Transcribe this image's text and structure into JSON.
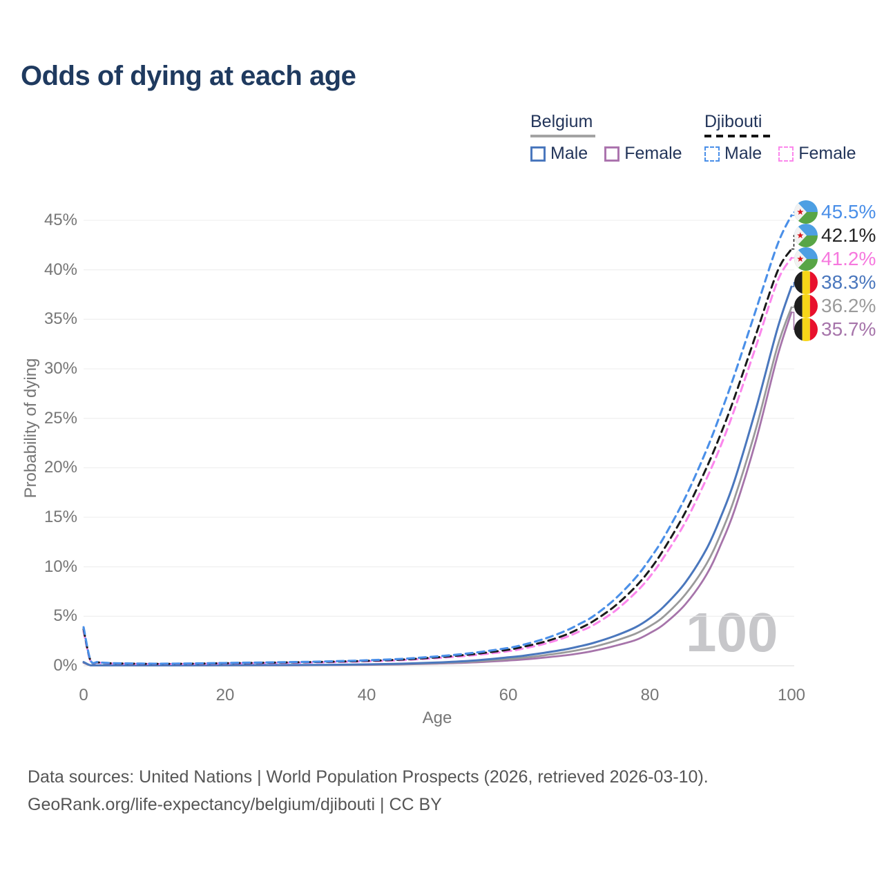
{
  "title": "Odds of dying at each age",
  "legend": {
    "groups": [
      {
        "name": "Belgium",
        "line_style": "solid",
        "items": [
          {
            "label": "Male",
            "color": "#4a77bd"
          },
          {
            "label": "Female",
            "color": "#ab74ae"
          }
        ]
      },
      {
        "name": "Djibouti",
        "line_style": "dashed",
        "items": [
          {
            "label": "Male",
            "color": "#4a8fe8"
          },
          {
            "label": "Female",
            "color": "#fb87ec"
          }
        ]
      }
    ]
  },
  "chart_data": {
    "type": "line",
    "xlabel": "Age",
    "ylabel": "Probability of dying",
    "xlim": [
      0,
      100
    ],
    "ylim_percent": [
      0,
      45
    ],
    "x_ticks": [
      0,
      20,
      40,
      60,
      80,
      100
    ],
    "y_ticks_percent": [
      0,
      5,
      10,
      15,
      20,
      25,
      30,
      35,
      40,
      45
    ],
    "grid": "horizontal",
    "hover_age_label": "100",
    "ages": [
      0,
      1,
      2,
      3,
      5,
      10,
      15,
      20,
      25,
      30,
      35,
      40,
      45,
      50,
      55,
      60,
      62,
      65,
      68,
      70,
      72,
      75,
      78,
      80,
      82,
      85,
      88,
      90,
      92,
      95,
      98,
      100
    ],
    "series": [
      {
        "name": "Belgium Female",
        "country": "Belgium",
        "sex": "female",
        "dash": false,
        "color": "#a674aa",
        "width": 2.8,
        "values_percent": [
          0.3,
          0.033,
          0.022,
          0.016,
          0.012,
          0.012,
          0.02,
          0.03,
          0.035,
          0.045,
          0.06,
          0.09,
          0.14,
          0.22,
          0.34,
          0.53,
          0.63,
          0.82,
          1.05,
          1.25,
          1.5,
          2.0,
          2.6,
          3.3,
          4.2,
          6.2,
          9.2,
          12.2,
          15.8,
          22.8,
          31.2,
          35.7
        ]
      },
      {
        "name": "Belgium (both sexes)",
        "country": "Belgium",
        "sex": "both",
        "dash": false,
        "color": "#9a9a9a",
        "width": 2.8,
        "values_percent": [
          0.34,
          0.037,
          0.025,
          0.018,
          0.014,
          0.013,
          0.025,
          0.045,
          0.05,
          0.06,
          0.08,
          0.11,
          0.17,
          0.27,
          0.42,
          0.68,
          0.8,
          1.05,
          1.35,
          1.6,
          1.9,
          2.5,
          3.25,
          4.0,
          5.0,
          7.2,
          10.3,
          13.3,
          17.0,
          24.0,
          32.2,
          36.2
        ]
      },
      {
        "name": "Belgium Male",
        "country": "Belgium",
        "sex": "male",
        "dash": false,
        "color": "#4a77bd",
        "width": 3,
        "values_percent": [
          0.38,
          0.04,
          0.03,
          0.02,
          0.015,
          0.015,
          0.03,
          0.06,
          0.07,
          0.08,
          0.1,
          0.14,
          0.21,
          0.33,
          0.52,
          0.85,
          1.0,
          1.3,
          1.65,
          1.95,
          2.3,
          3.0,
          3.9,
          4.8,
          6.0,
          8.4,
          11.8,
          15.0,
          18.8,
          26.0,
          34.0,
          38.3
        ]
      },
      {
        "name": "Djibouti Female",
        "country": "Djibouti",
        "sex": "female",
        "dash": true,
        "color": "#fb87ec",
        "width": 3.1,
        "values_percent": [
          3.5,
          0.44,
          0.33,
          0.26,
          0.21,
          0.18,
          0.19,
          0.23,
          0.27,
          0.31,
          0.37,
          0.45,
          0.57,
          0.78,
          1.06,
          1.47,
          1.72,
          2.2,
          2.85,
          3.45,
          4.1,
          5.5,
          7.4,
          9.0,
          11.0,
          14.5,
          18.9,
          22.2,
          26.0,
          32.3,
          38.8,
          41.2
        ]
      },
      {
        "name": "Djibouti (both sexes)",
        "country": "Djibouti",
        "sex": "both",
        "dash": true,
        "color": "#1a1a1a",
        "width": 3,
        "values_percent": [
          3.7,
          0.47,
          0.35,
          0.28,
          0.23,
          0.19,
          0.21,
          0.26,
          0.3,
          0.35,
          0.41,
          0.5,
          0.63,
          0.86,
          1.17,
          1.62,
          1.9,
          2.4,
          3.1,
          3.75,
          4.5,
          6.0,
          8.0,
          9.7,
          11.8,
          15.5,
          20.0,
          23.4,
          27.2,
          33.5,
          39.8,
          42.1
        ]
      },
      {
        "name": "Djibouti Male",
        "country": "Djibouti",
        "sex": "male",
        "dash": true,
        "color": "#4a8fe8",
        "width": 3.1,
        "values_percent": [
          3.9,
          0.5,
          0.38,
          0.3,
          0.25,
          0.21,
          0.23,
          0.28,
          0.33,
          0.38,
          0.45,
          0.55,
          0.7,
          0.95,
          1.3,
          1.8,
          2.1,
          2.7,
          3.5,
          4.2,
          5.0,
          6.7,
          8.9,
          10.8,
          13.0,
          17.0,
          21.8,
          25.5,
          29.5,
          36.0,
          42.5,
          45.5
        ]
      }
    ],
    "end_labels": [
      {
        "text": "45.5%",
        "value_percent": 45.5,
        "color": "#4a8fe8",
        "flag": "djibouti",
        "dashed": true,
        "series": "Djibouti Male"
      },
      {
        "text": "42.1%",
        "value_percent": 42.1,
        "color": "#262626",
        "flag": "djibouti",
        "dashed": true,
        "series": "Djibouti (both sexes)"
      },
      {
        "text": "41.2%",
        "value_percent": 41.2,
        "color": "#f678de",
        "flag": "djibouti",
        "dashed": true,
        "series": "Djibouti Female"
      },
      {
        "text": "38.3%",
        "value_percent": 38.3,
        "color": "#4a77bd",
        "flag": "belgium",
        "dashed": false,
        "series": "Belgium Male"
      },
      {
        "text": "36.2%",
        "value_percent": 36.2,
        "color": "#9b9b9b",
        "flag": "belgium",
        "dashed": false,
        "series": "Belgium (both sexes)"
      },
      {
        "text": "35.7%",
        "value_percent": 35.7,
        "color": "#a674aa",
        "flag": "belgium",
        "dashed": false,
        "series": "Belgium Female"
      }
    ]
  },
  "footer": {
    "line1": "Data sources: United Nations | World Population Prospects (2026, retrieved 2026-03-10).",
    "line2": "GeoRank.org/life-expectancy/belgium/djibouti | CC BY"
  }
}
